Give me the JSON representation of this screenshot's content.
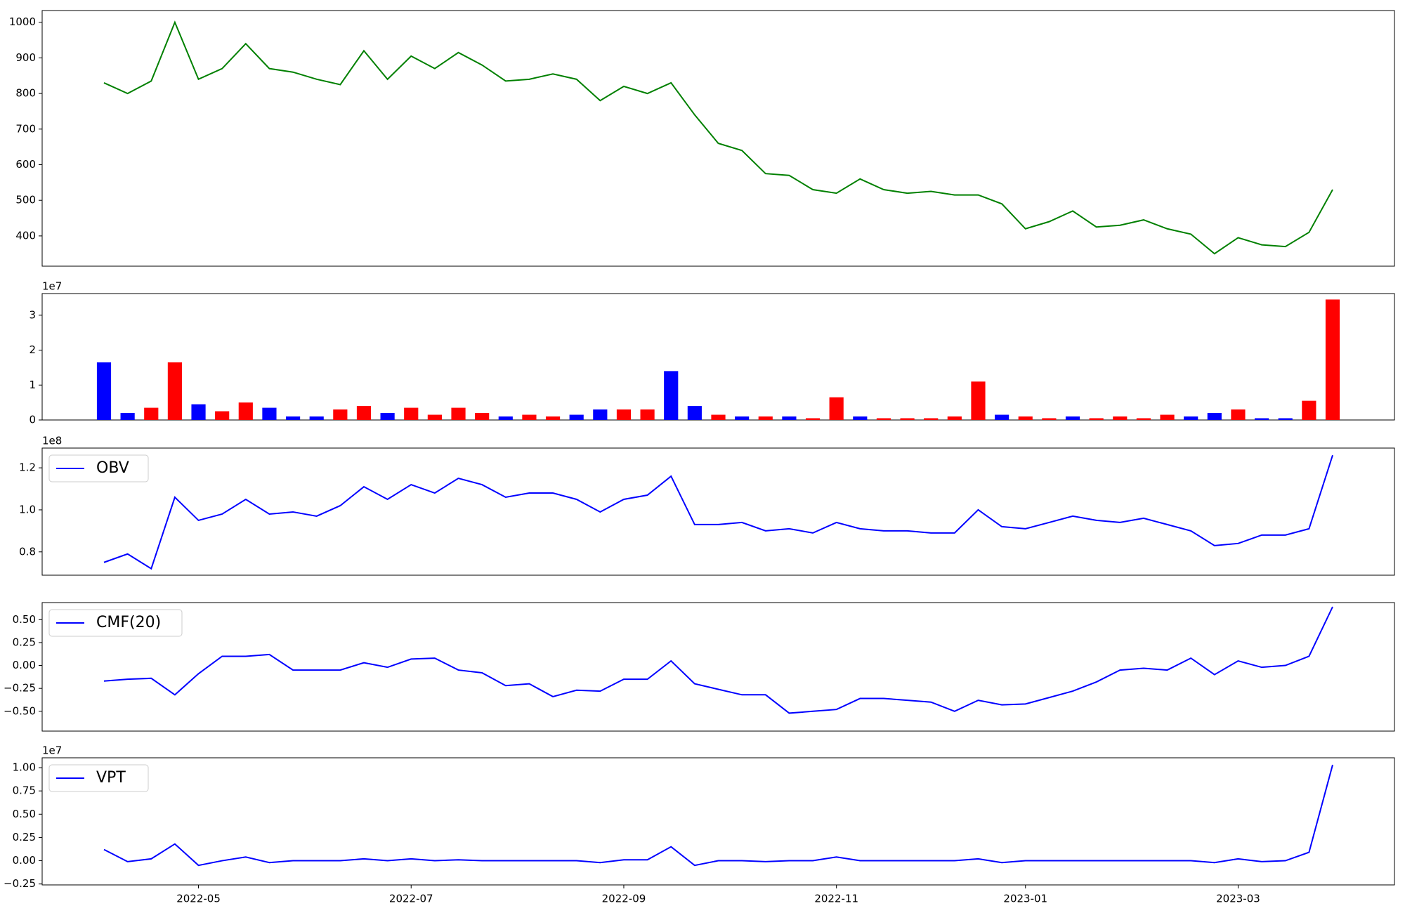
{
  "chart_data": [
    {
      "type": "line",
      "color": "#008000",
      "values": [
        830,
        800,
        835,
        1000,
        840,
        870,
        940,
        870,
        860,
        840,
        825,
        920,
        840,
        905,
        870,
        915,
        880,
        835,
        840,
        855,
        840,
        780,
        820,
        800,
        830,
        740,
        660,
        640,
        575,
        570,
        530,
        520,
        560,
        530,
        520,
        525,
        515,
        515,
        490,
        420,
        440,
        470,
        425,
        430,
        445,
        420,
        405,
        350,
        395,
        375,
        370,
        410,
        530
      ],
      "ylim": [
        315,
        1033
      ],
      "yticks": [
        400,
        500,
        600,
        700,
        800,
        900,
        1000
      ]
    },
    {
      "type": "bar",
      "offset_text": "1e7",
      "values": [
        1.65,
        0.2,
        0.35,
        1.65,
        0.45,
        0.25,
        0.5,
        0.35,
        0.1,
        0.1,
        0.3,
        0.4,
        0.2,
        0.35,
        0.15,
        0.35,
        0.2,
        0.1,
        0.15,
        0.1,
        0.15,
        0.3,
        0.3,
        0.3,
        1.4,
        0.4,
        0.15,
        0.1,
        0.1,
        0.1,
        0.05,
        0.65,
        0.1,
        0.05,
        0.05,
        0.05,
        0.1,
        1.1,
        0.15,
        0.1,
        0.05,
        0.1,
        0.05,
        0.1,
        0.05,
        0.15,
        0.1,
        0.2,
        0.3,
        0.05,
        0.05,
        0.55,
        3.45
      ],
      "colors": [
        "#0000ff",
        "#0000ff",
        "#ff0000",
        "#ff0000",
        "#0000ff",
        "#ff0000",
        "#ff0000",
        "#0000ff",
        "#0000ff",
        "#0000ff",
        "#ff0000",
        "#ff0000",
        "#0000ff",
        "#ff0000",
        "#ff0000",
        "#ff0000",
        "#ff0000",
        "#0000ff",
        "#ff0000",
        "#ff0000",
        "#0000ff",
        "#0000ff",
        "#ff0000",
        "#ff0000",
        "#0000ff",
        "#0000ff",
        "#ff0000",
        "#0000ff",
        "#ff0000",
        "#0000ff",
        "#ff0000",
        "#ff0000",
        "#0000ff",
        "#ff0000",
        "#ff0000",
        "#ff0000",
        "#ff0000",
        "#ff0000",
        "#0000ff",
        "#ff0000",
        "#ff0000",
        "#0000ff",
        "#ff0000",
        "#ff0000",
        "#ff0000",
        "#ff0000",
        "#0000ff",
        "#0000ff",
        "#ff0000",
        "#0000ff",
        "#0000ff",
        "#ff0000",
        "#ff0000"
      ],
      "ylim": [
        0,
        3.62
      ],
      "yticks": [
        0,
        1,
        2,
        3
      ]
    },
    {
      "type": "line",
      "offset_text": "1e8",
      "series": [
        {
          "name": "OBV",
          "color": "#0000ff",
          "values": [
            0.75,
            0.79,
            0.72,
            1.06,
            0.95,
            0.98,
            1.05,
            0.98,
            0.99,
            0.97,
            1.02,
            1.11,
            1.05,
            1.12,
            1.08,
            1.15,
            1.12,
            1.06,
            1.08,
            1.08,
            1.05,
            0.99,
            1.05,
            1.07,
            1.16,
            0.93,
            0.93,
            0.94,
            0.9,
            0.91,
            0.89,
            0.94,
            0.91,
            0.9,
            0.9,
            0.89,
            0.89,
            1.0,
            0.92,
            0.91,
            0.94,
            0.97,
            0.95,
            0.94,
            0.96,
            0.93,
            0.9,
            0.83,
            0.84,
            0.88,
            0.88,
            0.91,
            1.26
          ]
        }
      ],
      "ylim": [
        0.689,
        1.294
      ],
      "yticks": [
        0.8,
        {
          "value": 1.0,
          "label": "1.0"
        },
        1.2
      ]
    },
    {
      "type": "line",
      "series": [
        {
          "name": "CMF(20)",
          "color": "#0000ff",
          "values": [
            -0.17,
            -0.15,
            -0.14,
            -0.32,
            -0.09,
            0.1,
            0.1,
            0.12,
            -0.05,
            -0.05,
            -0.05,
            0.03,
            -0.02,
            0.07,
            0.08,
            -0.05,
            -0.08,
            -0.22,
            -0.2,
            -0.34,
            -0.27,
            -0.28,
            -0.15,
            -0.15,
            0.05,
            -0.2,
            -0.26,
            -0.32,
            -0.32,
            -0.52,
            -0.5,
            -0.48,
            -0.36,
            -0.36,
            -0.38,
            -0.4,
            -0.5,
            -0.38,
            -0.43,
            -0.42,
            -0.35,
            -0.28,
            -0.18,
            -0.05,
            -0.03,
            -0.05,
            0.08,
            -0.1,
            0.05,
            -0.02,
            0.0,
            0.1,
            0.64
          ]
        }
      ],
      "ylim": [
        -0.716,
        0.686
      ],
      "yticks": [
        {
          "value": -0.5,
          "label": "−0.50"
        },
        {
          "value": -0.25,
          "label": "−0.25"
        },
        {
          "value": 0,
          "label": "0.00"
        },
        {
          "value": 0.25,
          "label": "0.25"
        },
        {
          "value": 0.5,
          "label": "0.50"
        }
      ]
    },
    {
      "type": "line",
      "offset_text": "1e7",
      "series": [
        {
          "name": "VPT",
          "color": "#0000ff",
          "values": [
            0.12,
            -0.01,
            0.02,
            0.18,
            -0.05,
            0.0,
            0.04,
            -0.02,
            0.0,
            0.0,
            0.0,
            0.02,
            0.0,
            0.02,
            0.0,
            0.01,
            0.0,
            0.0,
            0.0,
            0.0,
            0.0,
            -0.02,
            0.01,
            0.01,
            0.15,
            -0.05,
            0.0,
            0.0,
            -0.01,
            0.0,
            0.0,
            0.04,
            0.0,
            0.0,
            0.0,
            0.0,
            0.0,
            0.02,
            -0.02,
            0.0,
            0.0,
            0.0,
            0.0,
            0.0,
            0.0,
            0.0,
            0.0,
            -0.02,
            0.02,
            -0.01,
            0.0,
            0.09,
            1.03
          ]
        }
      ],
      "ylim": [
        -0.26,
        1.106
      ],
      "yticks": [
        {
          "value": -0.25,
          "label": "−0.25"
        },
        {
          "value": 0,
          "label": "0.00"
        },
        {
          "value": 0.25,
          "label": "0.25"
        },
        {
          "value": 0.5,
          "label": "0.50"
        },
        {
          "value": 0.75,
          "label": "0.75"
        },
        {
          "value": 1.0,
          "label": "1.00"
        }
      ],
      "categories": [
        null,
        null,
        null,
        null,
        "2022-05",
        null,
        null,
        null,
        null,
        null,
        null,
        null,
        null,
        "2022-07",
        null,
        null,
        null,
        null,
        null,
        null,
        null,
        null,
        "2022-09",
        null,
        null,
        null,
        null,
        null,
        null,
        null,
        null,
        "2022-11",
        null,
        null,
        null,
        null,
        null,
        null,
        null,
        "2023-01",
        null,
        null,
        null,
        null,
        null,
        null,
        null,
        null,
        "2023-03",
        null,
        null,
        null,
        null
      ]
    }
  ]
}
